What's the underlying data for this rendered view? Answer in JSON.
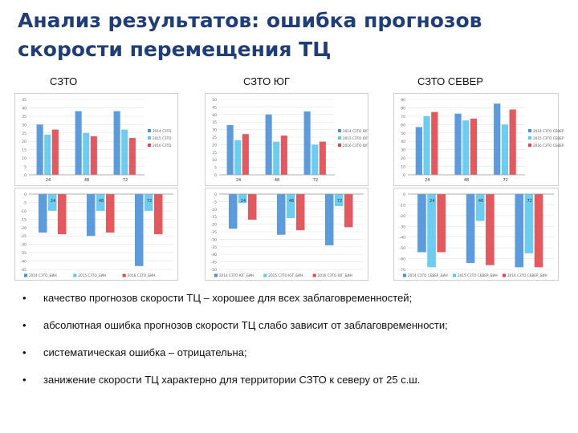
{
  "header": {
    "title_line1": "Анализ результатов: ошибка прогнозов",
    "title_line2": "скорости перемещения ТЦ"
  },
  "columns": [
    "СЗТО",
    "СЗТО ЮГ",
    "СЗТО СЕВЕР"
  ],
  "colors": {
    "blue": "#4a90d9",
    "cyan": "#5cc8f0",
    "red": "#e0474c"
  },
  "chart_data": [
    {
      "type": "bar",
      "region": "СЗТО",
      "panel": "upper",
      "categories": [
        "24",
        "48",
        "72"
      ],
      "series": [
        {
          "name": "2014 СЗТО",
          "values": [
            30,
            38,
            38
          ]
        },
        {
          "name": "2015 СЗТО",
          "values": [
            24,
            25,
            27
          ]
        },
        {
          "name": "2016 СЗТО",
          "values": [
            27,
            23,
            22
          ]
        }
      ],
      "ylim": [
        0,
        45
      ],
      "yticks": [
        "0",
        "5",
        "10",
        "15",
        "20",
        "25",
        "30",
        "35",
        "40",
        "45"
      ],
      "legend": "right"
    },
    {
      "type": "bar",
      "region": "СЗТО",
      "panel": "lower",
      "categories": [
        "24",
        "48",
        "72"
      ],
      "series": [
        {
          "name": "2014 СЗТО_БИН",
          "values": [
            -23,
            -25,
            -43
          ]
        },
        {
          "name": "2015 СЗТО_БИН",
          "values": [
            -10,
            -10,
            -10
          ]
        },
        {
          "name": "2016 СЗТО_БИН",
          "values": [
            -24,
            -23,
            -24
          ]
        }
      ],
      "ylim": [
        -45,
        0
      ],
      "yticks": [
        "0",
        "-5",
        "-10",
        "-15",
        "-20",
        "-25",
        "-30",
        "-35",
        "-40",
        "-45"
      ],
      "legend": "bottom"
    },
    {
      "type": "bar",
      "region": "СЗТО ЮГ",
      "panel": "upper",
      "categories": [
        "24",
        "48",
        "72"
      ],
      "series": [
        {
          "name": "2014 СЗТО ЮГ",
          "values": [
            33,
            40,
            42
          ]
        },
        {
          "name": "2015 СЗТО ЮГ",
          "values": [
            23,
            22,
            20
          ]
        },
        {
          "name": "2016 СЗТО ЮГ",
          "values": [
            27,
            26,
            22
          ]
        }
      ],
      "ylim": [
        0,
        50
      ],
      "yticks": [
        "0",
        "5",
        "10",
        "15",
        "20",
        "25",
        "30",
        "35",
        "40",
        "45",
        "50"
      ],
      "legend": "right"
    },
    {
      "type": "bar",
      "region": "СЗТО ЮГ",
      "panel": "lower",
      "categories": [
        "24",
        "48",
        "72"
      ],
      "series": [
        {
          "name": "2014 СЗТО ЮГ_БИН",
          "values": [
            -23,
            -27,
            -34
          ]
        },
        {
          "name": "2015 СЗТО ЮГ_БИН",
          "values": [
            -6,
            -16,
            -8
          ]
        },
        {
          "name": "2016 СЗТО ЮГ_БИН",
          "values": [
            -17,
            -24,
            -22
          ]
        }
      ],
      "ylim": [
        -50,
        0
      ],
      "yticks": [
        "0",
        "-5",
        "-10",
        "-15",
        "-20",
        "-25",
        "-30",
        "-35",
        "-40",
        "-45",
        "-50"
      ],
      "legend": "bottom"
    },
    {
      "type": "bar",
      "region": "СЗТО СЕВЕР",
      "panel": "upper",
      "categories": [
        "24",
        "48",
        "72"
      ],
      "series": [
        {
          "name": "2014 СЗТО СЕВЕР",
          "values": [
            57,
            73,
            85
          ]
        },
        {
          "name": "2015 СЗТО СЕВЕР",
          "values": [
            70,
            65,
            60
          ]
        },
        {
          "name": "2016 СЗТО СЕВЕР",
          "values": [
            75,
            67,
            78
          ]
        }
      ],
      "ylim": [
        0,
        90
      ],
      "yticks": [
        "0",
        "10",
        "20",
        "30",
        "40",
        "50",
        "60",
        "70",
        "80",
        "90"
      ],
      "legend": "right"
    },
    {
      "type": "bar",
      "region": "СЗТО СЕВЕР",
      "panel": "lower",
      "categories": [
        "24",
        "48",
        "72"
      ],
      "series": [
        {
          "name": "2014 СЗТО СЕВЕР_БИН",
          "values": [
            -54,
            -64,
            -68
          ]
        },
        {
          "name": "2015 СЗТО СЕВЕР_БИН",
          "values": [
            -68,
            -25,
            -55
          ]
        },
        {
          "name": "2016 СЗТО СЕВЕР_БИН",
          "values": [
            -54,
            -66,
            -68
          ]
        }
      ],
      "ylim": [
        -70,
        0
      ],
      "yticks": [
        "0",
        "-10",
        "-20",
        "-30",
        "-40",
        "-50",
        "-60",
        "-70"
      ],
      "legend": "bottom"
    }
  ],
  "bullets": [
    "качество прогнозов скорости ТЦ – хорошее для всех заблаговременностей;",
    "абсолютная ошибка прогнозов скорости ТЦ слабо зависит от заблаговременности;",
    "систематическая ошибка – отрицательна;",
    "занижение скорости ТЦ характерно для территории СЗТО к северу от 25 с.ш."
  ],
  "bullet_symbol": "•"
}
